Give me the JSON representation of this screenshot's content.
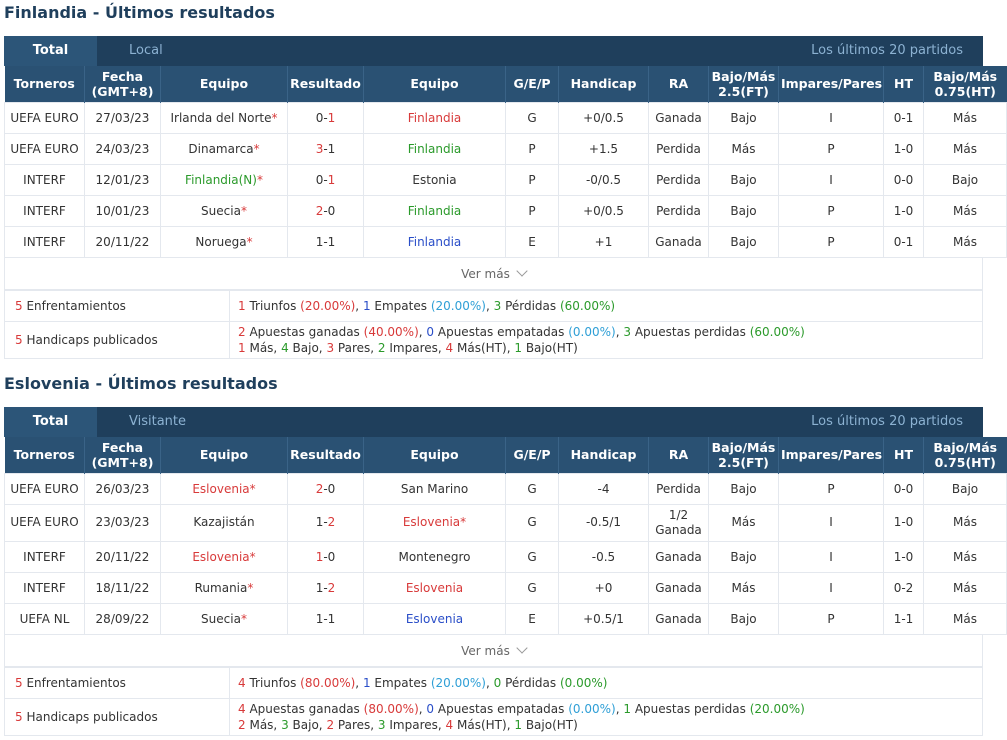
{
  "sections": [
    {
      "title": "Finlandia - Últimos resultados",
      "tabs": {
        "active": "Total",
        "inactive": "Local",
        "last": "Los últimos 20 partidos"
      },
      "headers": [
        "Torneros",
        "Fecha\n(GMT+8)",
        "Equipo",
        "Resultado",
        "Equipo",
        "G/E/P",
        "Handicap",
        "RA",
        "Bajo/Más\n2.5(FT)",
        "Impares/Pares",
        "HT",
        "Bajo/Más\n0.75(HT)"
      ],
      "rows": [
        {
          "tour": "UEFA EURO",
          "date": "27/03/23",
          "home": "Irlanda del Norte",
          "home_star": true,
          "home_color": "",
          "score_home": "0",
          "score_away": "1",
          "score_home_color": "",
          "score_away_color": "red",
          "away": "Finlandia",
          "away_star": false,
          "away_color": "red",
          "gep": "G",
          "gep_color": "red",
          "handicap": "+0/0.5",
          "ra": "Ganada",
          "ra_color": "red",
          "ou": "Bajo",
          "ou_color": "green",
          "oe": "I",
          "oe_color": "green",
          "ht": "0-1",
          "ou_ht": "Más",
          "ou_ht_color": "red"
        },
        {
          "tour": "UEFA EURO",
          "date": "24/03/23",
          "home": "Dinamarca",
          "home_star": true,
          "home_color": "",
          "score_home": "3",
          "score_away": "1",
          "score_home_color": "red",
          "score_away_color": "",
          "away": "Finlandia",
          "away_star": false,
          "away_color": "green",
          "gep": "P",
          "gep_color": "green",
          "handicap": "+1.5",
          "ra": "Perdida",
          "ra_color": "green",
          "ou": "Más",
          "ou_color": "red",
          "oe": "P",
          "oe_color": "red",
          "ht": "1-0",
          "ou_ht": "Más",
          "ou_ht_color": "red"
        },
        {
          "tour": "INTERF",
          "date": "12/01/23",
          "home": "Finlandia(N)",
          "home_star": true,
          "home_color": "green",
          "score_home": "0",
          "score_away": "1",
          "score_home_color": "",
          "score_away_color": "red",
          "away": "Estonia",
          "away_star": false,
          "away_color": "",
          "gep": "P",
          "gep_color": "green",
          "handicap": "-0/0.5",
          "ra": "Perdida",
          "ra_color": "green",
          "ou": "Bajo",
          "ou_color": "green",
          "oe": "I",
          "oe_color": "green",
          "ht": "0-0",
          "ou_ht": "Bajo",
          "ou_ht_color": "green"
        },
        {
          "tour": "INTERF",
          "date": "10/01/23",
          "home": "Suecia",
          "home_star": true,
          "home_color": "",
          "score_home": "2",
          "score_away": "0",
          "score_home_color": "red",
          "score_away_color": "",
          "away": "Finlandia",
          "away_star": false,
          "away_color": "green",
          "gep": "P",
          "gep_color": "green",
          "handicap": "+0/0.5",
          "ra": "Perdida",
          "ra_color": "green",
          "ou": "Bajo",
          "ou_color": "green",
          "oe": "P",
          "oe_color": "red",
          "ht": "1-0",
          "ou_ht": "Más",
          "ou_ht_color": "red"
        },
        {
          "tour": "INTERF",
          "date": "20/11/22",
          "home": "Noruega",
          "home_star": true,
          "home_color": "",
          "score_home": "1",
          "score_away": "1",
          "score_home_color": "",
          "score_away_color": "",
          "away": "Finlandia",
          "away_star": false,
          "away_color": "blue",
          "gep": "E",
          "gep_color": "cyan",
          "handicap": "+1",
          "ra": "Ganada",
          "ra_color": "red",
          "ou": "Bajo",
          "ou_color": "green",
          "oe": "P",
          "oe_color": "red",
          "ht": "0-1",
          "ou_ht": "Más",
          "ou_ht_color": "red"
        }
      ],
      "vermas": "Ver más",
      "summary": {
        "enfrentamientos_count": "5",
        "enfrentamientos_label": "Enfrentamientos",
        "wins_n": "1",
        "wins_label": "Triunfos",
        "wins_pct": "(20.00%)",
        "draws_n": "1",
        "draws_label": "Empates",
        "draws_pct": "(20.00%)",
        "losses_n": "3",
        "losses_label": "Pérdidas",
        "losses_pct": "(60.00%)",
        "handicaps_count": "5",
        "handicaps_label": "Handicaps publicados",
        "won_n": "2",
        "won_label": "Apuestas ganadas",
        "won_pct": "(40.00%)",
        "tied_n": "0",
        "tied_label": "Apuestas empatadas",
        "tied_pct": "(0.00%)",
        "lost_n": "3",
        "lost_label": "Apuestas perdidas",
        "lost_pct": "(60.00%)",
        "mas_n": "1",
        "mas_label": "Más,",
        "bajo_n": "4",
        "bajo_label": "Bajo,",
        "pares_n": "3",
        "pares_label": "Pares,",
        "impares_n": "2",
        "impares_label": "Impares,",
        "masht_n": "4",
        "masht_label": "Más(HT),",
        "bajoht_n": "1",
        "bajoht_label": "Bajo(HT)"
      }
    },
    {
      "title": "Eslovenia - Últimos resultados",
      "tabs": {
        "active": "Total",
        "inactive": "Visitante",
        "last": "Los últimos 20 partidos"
      },
      "headers": [
        "Torneros",
        "Fecha\n(GMT+8)",
        "Equipo",
        "Resultado",
        "Equipo",
        "G/E/P",
        "Handicap",
        "RA",
        "Bajo/Más\n2.5(FT)",
        "Impares/Pares",
        "HT",
        "Bajo/Más\n0.75(HT)"
      ],
      "rows": [
        {
          "tour": "UEFA EURO",
          "date": "26/03/23",
          "home": "Eslovenia",
          "home_star": true,
          "home_color": "red",
          "score_home": "2",
          "score_away": "0",
          "score_home_color": "red",
          "score_away_color": "",
          "away": "San Marino",
          "away_star": false,
          "away_color": "",
          "gep": "G",
          "gep_color": "red",
          "handicap": "-4",
          "ra": "Perdida",
          "ra_color": "green",
          "ou": "Bajo",
          "ou_color": "green",
          "oe": "P",
          "oe_color": "red",
          "ht": "0-0",
          "ou_ht": "Bajo",
          "ou_ht_color": "green"
        },
        {
          "tour": "UEFA EURO",
          "date": "23/03/23",
          "home": "Kazajistán",
          "home_star": false,
          "home_color": "",
          "score_home": "1",
          "score_away": "2",
          "score_home_color": "",
          "score_away_color": "red",
          "away": "Eslovenia",
          "away_star": true,
          "away_color": "red",
          "gep": "G",
          "gep_color": "red",
          "handicap": "-0.5/1",
          "ra": "1/2\nGanada",
          "ra_color": "red",
          "ou": "Más",
          "ou_color": "red",
          "oe": "I",
          "oe_color": "green",
          "ht": "1-0",
          "ou_ht": "Más",
          "ou_ht_color": "red",
          "tall": true
        },
        {
          "tour": "INTERF",
          "date": "20/11/22",
          "home": "Eslovenia",
          "home_star": true,
          "home_color": "red",
          "score_home": "1",
          "score_away": "0",
          "score_home_color": "red",
          "score_away_color": "",
          "away": "Montenegro",
          "away_star": false,
          "away_color": "",
          "gep": "G",
          "gep_color": "red",
          "handicap": "-0.5",
          "ra": "Ganada",
          "ra_color": "red",
          "ou": "Bajo",
          "ou_color": "green",
          "oe": "I",
          "oe_color": "green",
          "ht": "1-0",
          "ou_ht": "Más",
          "ou_ht_color": "red"
        },
        {
          "tour": "INTERF",
          "date": "18/11/22",
          "home": "Rumania",
          "home_star": true,
          "home_color": "",
          "score_home": "1",
          "score_away": "2",
          "score_home_color": "",
          "score_away_color": "red",
          "away": "Eslovenia",
          "away_star": false,
          "away_color": "red",
          "gep": "G",
          "gep_color": "red",
          "handicap": "+0",
          "ra": "Ganada",
          "ra_color": "red",
          "ou": "Más",
          "ou_color": "red",
          "oe": "I",
          "oe_color": "green",
          "ht": "0-2",
          "ou_ht": "Más",
          "ou_ht_color": "red"
        },
        {
          "tour": "UEFA NL",
          "date": "28/09/22",
          "home": "Suecia",
          "home_star": true,
          "home_color": "",
          "score_home": "1",
          "score_away": "1",
          "score_home_color": "",
          "score_away_color": "",
          "away": "Eslovenia",
          "away_star": false,
          "away_color": "blue",
          "gep": "E",
          "gep_color": "cyan",
          "handicap": "+0.5/1",
          "ra": "Ganada",
          "ra_color": "red",
          "ou": "Bajo",
          "ou_color": "green",
          "oe": "P",
          "oe_color": "red",
          "ht": "1-1",
          "ou_ht": "Más",
          "ou_ht_color": "red",
          "tour_color": "nl"
        }
      ],
      "vermas": "Ver más",
      "summary": {
        "enfrentamientos_count": "5",
        "enfrentamientos_label": "Enfrentamientos",
        "wins_n": "4",
        "wins_label": "Triunfos",
        "wins_pct": "(80.00%)",
        "draws_n": "1",
        "draws_label": "Empates",
        "draws_pct": "(20.00%)",
        "losses_n": "0",
        "losses_label": "Pérdidas",
        "losses_pct": "(0.00%)",
        "handicaps_count": "5",
        "handicaps_label": "Handicaps publicados",
        "won_n": "4",
        "won_label": "Apuestas ganadas",
        "won_pct": "(80.00%)",
        "tied_n": "0",
        "tied_label": "Apuestas empatadas",
        "tied_pct": "(0.00%)",
        "lost_n": "1",
        "lost_label": "Apuestas perdidas",
        "lost_pct": "(20.00%)",
        "mas_n": "2",
        "mas_label": "Más,",
        "bajo_n": "3",
        "bajo_label": "Bajo,",
        "pares_n": "2",
        "pares_label": "Pares,",
        "impares_n": "3",
        "impares_label": "Impares,",
        "masht_n": "4",
        "masht_label": "Más(HT),",
        "bajoht_n": "1",
        "bajoht_label": "Bajo(HT)"
      }
    }
  ],
  "colors": {
    "header_dark": "#1f3f5c",
    "header_row": "#2a5173",
    "red": "#d83a3a",
    "green": "#2b9a2b",
    "blue": "#2a4ec8",
    "cyan": "#2f9fd6",
    "tournament": "#8a8c2e"
  }
}
